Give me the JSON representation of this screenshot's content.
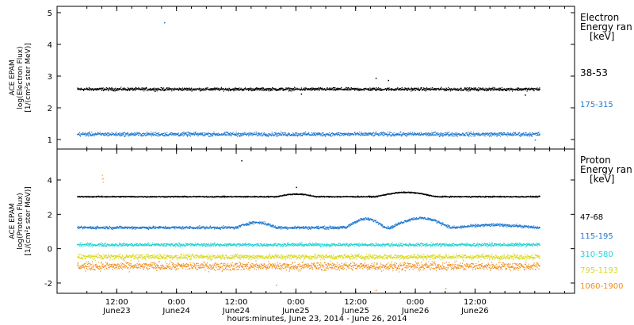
{
  "chart_data": [
    {
      "type": "scatter",
      "panel": "electron",
      "ylabel_lines": [
        "ACE EPAM",
        "log(Electron Flux)",
        "[1/(cm²s ster MeV)]"
      ],
      "ylim": [
        0.7,
        5.2
      ],
      "yticks": [
        "1",
        "2",
        "3",
        "4",
        "5"
      ],
      "ytick_values": [
        1,
        2,
        3,
        4,
        5
      ],
      "legend_title_lines": [
        "Electron",
        "Energy ran",
        "[keV]"
      ],
      "series": [
        {
          "name": "38-53",
          "color": "#000000",
          "x_range": [
            0,
            93
          ],
          "mean": 2.6,
          "spread": 0.07,
          "outliers": [
            [
              60,
              2.95
            ],
            [
              62.5,
              2.88
            ],
            [
              45,
              2.45
            ],
            [
              90,
              2.42
            ]
          ]
        },
        {
          "name": "175-315",
          "color": "#1f78d0",
          "x_range": [
            0,
            93
          ],
          "mean": 1.18,
          "spread": 0.09,
          "outliers": [
            [
              17.5,
              4.7
            ],
            [
              59,
              0.72
            ],
            [
              92,
              1.0
            ]
          ]
        }
      ]
    },
    {
      "type": "scatter",
      "panel": "proton",
      "ylabel_lines": [
        "ACE EPAM",
        "log(Proton Flux)",
        "[1/(cm²s ster MeV)]"
      ],
      "ylim": [
        -2.6,
        5.8
      ],
      "yticks": [
        "-2",
        "0",
        "2",
        "4"
      ],
      "ytick_values": [
        -2,
        0,
        2,
        4
      ],
      "legend_title_lines": [
        "Proton",
        "Energy ran",
        "[keV]"
      ],
      "series": [
        {
          "name": "47-68",
          "color": "#000000",
          "x_range": [
            0,
            93
          ],
          "mean": 3.05,
          "spread": 0.05,
          "bumps": [
            [
              40,
              48,
              0.15
            ],
            [
              60,
              72,
              0.25
            ]
          ],
          "outliers": [
            [
              33,
              5.15
            ],
            [
              44,
              3.6
            ]
          ]
        },
        {
          "name": "115-195",
          "color": "#1f78d0",
          "x_range": [
            0,
            93
          ],
          "mean": 1.25,
          "spread": 0.12,
          "bumps": [
            [
              32,
              40,
              0.3
            ],
            [
              54,
              62,
              0.5
            ],
            [
              63,
              75,
              0.55
            ],
            [
              76,
              92,
              0.15
            ]
          ],
          "outliers": []
        },
        {
          "name": "310-580",
          "color": "#22d3d3",
          "x_range": [
            0,
            93
          ],
          "mean": 0.25,
          "spread": 0.14,
          "bumps": [],
          "outliers": []
        },
        {
          "name": "795-1193",
          "color": "#d8d820",
          "x_range": [
            0,
            93
          ],
          "mean": -0.45,
          "spread": 0.22,
          "bumps": [],
          "outliers": [
            [
              5,
              4.3
            ],
            [
              5.2,
              3.9
            ]
          ]
        },
        {
          "name": "1060-1900",
          "color": "#f08c1a",
          "x_range": [
            0,
            93
          ],
          "mean": -1.0,
          "spread": 0.35,
          "bumps": [],
          "outliers": [
            [
              5.1,
              4.1
            ],
            [
              60,
              -2.4
            ],
            [
              74,
              -2.3
            ],
            [
              40,
              -2.1
            ]
          ]
        }
      ]
    }
  ],
  "x_axis": {
    "xlim": [
      -4,
      100
    ],
    "ticks": [
      {
        "value": 8,
        "time": "12:00",
        "date": "June23"
      },
      {
        "value": 20,
        "time": "0:00",
        "date": "June24"
      },
      {
        "value": 32,
        "time": "12:00",
        "date": "June24"
      },
      {
        "value": 44,
        "time": "0:00",
        "date": "June25"
      },
      {
        "value": 56,
        "time": "12:00",
        "date": "June25"
      },
      {
        "value": 68,
        "time": "0:00",
        "date": "June26"
      },
      {
        "value": 80,
        "time": "12:00",
        "date": "June26"
      }
    ],
    "xlabel": "hours:minutes, June 23, 2014 - June 26, 2014"
  }
}
